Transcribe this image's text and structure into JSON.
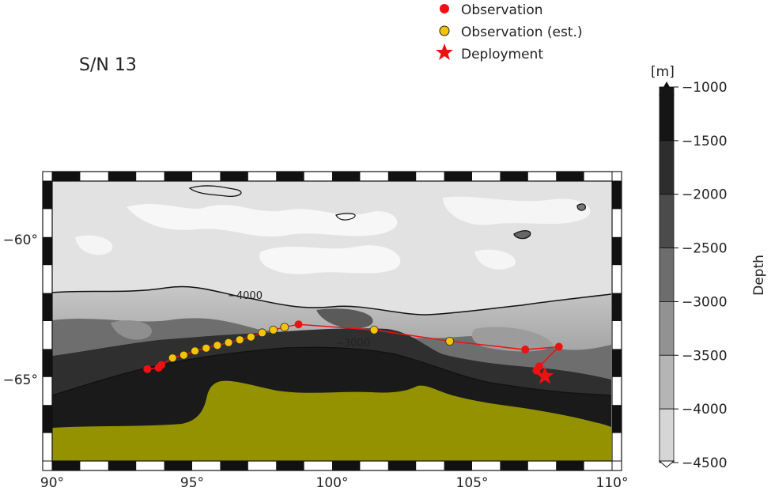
{
  "figure": {
    "title": "S/N 13"
  },
  "legend": {
    "items": [
      {
        "label": "Observation",
        "marker": "circle",
        "color": "#ee1111"
      },
      {
        "label": "Observation (est.)",
        "marker": "circle",
        "color": "#f5c400"
      },
      {
        "label": "Deployment",
        "marker": "star",
        "color": "#ee1111"
      }
    ]
  },
  "map": {
    "lon_ticks": [
      "90°",
      "95°",
      "100°",
      "105°",
      "110°"
    ],
    "lat_ticks": [
      "−60°",
      "−65°"
    ],
    "contour_labels": [
      "−4000",
      "−3000"
    ],
    "land_color": "#959200"
  },
  "colorbar": {
    "unit": "[m]",
    "label": "Depth",
    "ticks": [
      "−1000",
      "−1500",
      "−2000",
      "−2500",
      "−3000",
      "−3500",
      "−4000",
      "−4500"
    ],
    "colors": [
      "#151515",
      "#2d2d2d",
      "#4b4b4b",
      "#6d6d6d",
      "#929292",
      "#b5b5b5",
      "#d6d6d6",
      "#f6f6f6"
    ]
  },
  "track": {
    "observations": [
      {
        "lon": 98.8,
        "lat": -63.0
      },
      {
        "lon": 106.9,
        "lat": -63.9
      },
      {
        "lon": 108.1,
        "lat": -63.8
      },
      {
        "lon": 107.4,
        "lat": -64.5
      },
      {
        "lon": 107.3,
        "lat": -64.65
      },
      {
        "lon": 93.8,
        "lat": -64.55
      },
      {
        "lon": 93.9,
        "lat": -64.45
      },
      {
        "lon": 93.4,
        "lat": -64.6
      }
    ],
    "estimated": [
      {
        "lon": 104.2,
        "lat": -63.6
      },
      {
        "lon": 101.5,
        "lat": -63.2
      },
      {
        "lon": 98.3,
        "lat": -63.1
      },
      {
        "lon": 97.9,
        "lat": -63.2
      },
      {
        "lon": 97.5,
        "lat": -63.3
      },
      {
        "lon": 97.1,
        "lat": -63.45
      },
      {
        "lon": 96.7,
        "lat": -63.55
      },
      {
        "lon": 96.3,
        "lat": -63.65
      },
      {
        "lon": 95.9,
        "lat": -63.75
      },
      {
        "lon": 95.5,
        "lat": -63.85
      },
      {
        "lon": 95.1,
        "lat": -63.95
      },
      {
        "lon": 94.7,
        "lat": -64.1
      },
      {
        "lon": 94.3,
        "lat": -64.2
      }
    ],
    "deployment": {
      "lon": 107.6,
      "lat": -64.85
    },
    "route": [
      {
        "lon": 107.6,
        "lat": -64.85
      },
      {
        "lon": 107.3,
        "lat": -64.65
      },
      {
        "lon": 107.4,
        "lat": -64.5
      },
      {
        "lon": 108.1,
        "lat": -63.8
      },
      {
        "lon": 106.9,
        "lat": -63.9
      },
      {
        "lon": 104.2,
        "lat": -63.6
      },
      {
        "lon": 101.5,
        "lat": -63.2
      },
      {
        "lon": 98.8,
        "lat": -63.0
      },
      {
        "lon": 98.3,
        "lat": -63.1
      },
      {
        "lon": 97.9,
        "lat": -63.2
      },
      {
        "lon": 97.5,
        "lat": -63.3
      },
      {
        "lon": 97.1,
        "lat": -63.45
      },
      {
        "lon": 96.7,
        "lat": -63.55
      },
      {
        "lon": 96.3,
        "lat": -63.65
      },
      {
        "lon": 95.9,
        "lat": -63.75
      },
      {
        "lon": 95.5,
        "lat": -63.85
      },
      {
        "lon": 95.1,
        "lat": -63.95
      },
      {
        "lon": 94.7,
        "lat": -64.1
      },
      {
        "lon": 94.3,
        "lat": -64.2
      },
      {
        "lon": 93.9,
        "lat": -64.45
      },
      {
        "lon": 93.8,
        "lat": -64.55
      },
      {
        "lon": 93.4,
        "lat": -64.6
      }
    ]
  }
}
